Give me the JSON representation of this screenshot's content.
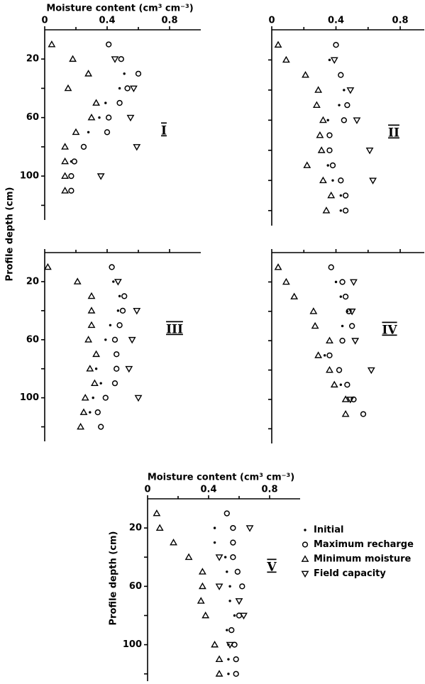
{
  "chart_data": [
    {
      "type": "scatter",
      "label": "I",
      "xlabel": "Moisture content (cm³ cm⁻³)",
      "ylabel": "Profile depth (cm)",
      "xlim": [
        0,
        1
      ],
      "ylim": [
        0,
        130
      ],
      "xticks": [
        0,
        0.4,
        0.8
      ],
      "xminor": [
        0.2,
        0.6
      ],
      "xtick_labels": true,
      "yticks": [
        20,
        60,
        100
      ],
      "yminor": [
        40,
        80,
        120
      ],
      "ytick_labels": true,
      "invert_y": true,
      "depth": [
        10,
        20,
        30,
        40,
        50,
        60,
        70,
        80,
        90,
        100,
        110
      ],
      "series": [
        {
          "marker": "dot",
          "x": [
            null,
            null,
            0.51,
            0.48,
            0.39,
            0.35,
            0.28,
            null,
            0.17,
            null,
            null
          ]
        },
        {
          "marker": "circle",
          "x": [
            0.41,
            0.49,
            0.6,
            0.53,
            0.48,
            0.41,
            0.4,
            0.25,
            0.19,
            0.17,
            0.17
          ]
        },
        {
          "marker": "triangle",
          "x": [
            0.045,
            0.18,
            0.28,
            0.15,
            0.33,
            0.3,
            0.2,
            0.13,
            0.13,
            0.13,
            0.13
          ]
        },
        {
          "marker": "triangle-down",
          "x": [
            null,
            0.45,
            null,
            0.57,
            null,
            0.55,
            null,
            0.59,
            null,
            0.36,
            null
          ]
        }
      ]
    },
    {
      "type": "scatter",
      "label": "II",
      "xlim": [
        0,
        0.95
      ],
      "ylim": [
        0,
        130
      ],
      "xticks": [
        0,
        0.4,
        0.8
      ],
      "xminor": [
        0.2,
        0.6
      ],
      "xtick_labels": true,
      "yticks": [
        20,
        60,
        100
      ],
      "yminor": [
        40,
        80,
        120
      ],
      "ytick_labels": false,
      "invert_y": true,
      "depth": [
        10,
        20,
        30,
        40,
        50,
        60,
        70,
        80,
        90,
        100,
        110,
        120
      ],
      "series": [
        {
          "marker": "dot",
          "x": [
            null,
            0.36,
            null,
            0.45,
            0.42,
            0.35,
            null,
            null,
            0.35,
            0.38,
            0.43,
            0.43
          ]
        },
        {
          "marker": "circle",
          "x": [
            0.4,
            null,
            0.43,
            null,
            0.47,
            0.45,
            0.36,
            0.36,
            0.38,
            0.43,
            0.46,
            0.46
          ]
        },
        {
          "marker": "triangle",
          "x": [
            0.04,
            0.09,
            0.21,
            0.29,
            0.28,
            0.32,
            0.3,
            0.31,
            0.22,
            0.32,
            0.37,
            0.34
          ]
        },
        {
          "marker": "triangle-down",
          "x": [
            null,
            0.39,
            null,
            0.49,
            null,
            0.53,
            null,
            0.61,
            null,
            0.63,
            null,
            null
          ]
        }
      ]
    },
    {
      "type": "scatter",
      "label": "III",
      "xlim": [
        0,
        1
      ],
      "ylim": [
        0,
        130
      ],
      "xticks": [
        0,
        0.4,
        0.8
      ],
      "xminor": [
        0.2,
        0.6
      ],
      "xtick_labels": false,
      "yticks": [
        20,
        60,
        100
      ],
      "yminor": [
        40,
        80,
        120
      ],
      "ytick_labels": true,
      "invert_y": true,
      "depth": [
        10,
        20,
        30,
        40,
        50,
        60,
        70,
        80,
        90,
        100,
        110,
        120
      ],
      "series": [
        {
          "marker": "dot",
          "x": [
            null,
            0.44,
            0.48,
            0.47,
            0.42,
            0.39,
            null,
            0.33,
            0.36,
            0.31,
            0.29,
            null
          ]
        },
        {
          "marker": "circle",
          "x": [
            0.43,
            null,
            0.51,
            0.5,
            0.48,
            0.45,
            0.46,
            0.46,
            0.45,
            0.39,
            0.34,
            0.36
          ]
        },
        {
          "marker": "triangle",
          "x": [
            0.02,
            0.21,
            0.3,
            0.3,
            0.3,
            0.28,
            0.33,
            0.29,
            0.32,
            0.26,
            0.25,
            0.23
          ]
        },
        {
          "marker": "triangle-down",
          "x": [
            null,
            0.47,
            null,
            0.59,
            null,
            0.56,
            null,
            0.54,
            null,
            0.6,
            null,
            null
          ]
        }
      ]
    },
    {
      "type": "scatter",
      "label": "IV",
      "xlim": [
        0,
        0.95
      ],
      "ylim": [
        0,
        130
      ],
      "xticks": [
        0,
        0.4,
        0.8
      ],
      "xminor": [
        0.2,
        0.6
      ],
      "xtick_labels": false,
      "yticks": [
        20,
        60,
        100
      ],
      "yminor": [
        40,
        80,
        120
      ],
      "ytick_labels": false,
      "invert_y": true,
      "depth": [
        10,
        20,
        30,
        40,
        50,
        60,
        70,
        80,
        90,
        100,
        110
      ],
      "series": [
        {
          "marker": "dot",
          "x": [
            null,
            0.4,
            0.43,
            0.47,
            0.44,
            null,
            0.33,
            null,
            0.43,
            null,
            null
          ]
        },
        {
          "marker": "circle",
          "x": [
            0.37,
            0.44,
            0.46,
            0.48,
            0.5,
            0.44,
            0.36,
            0.42,
            0.47,
            0.51,
            0.57
          ]
        },
        {
          "marker": "triangle",
          "x": [
            0.04,
            0.09,
            0.14,
            0.26,
            0.27,
            0.36,
            0.29,
            0.36,
            0.39,
            0.46,
            0.46
          ]
        },
        {
          "marker": "triangle-down",
          "x": [
            null,
            0.51,
            null,
            0.5,
            null,
            0.52,
            null,
            0.62,
            null,
            0.49,
            null
          ]
        }
      ]
    },
    {
      "type": "scatter",
      "label": "V",
      "xlabel": "Moisture content (cm³ cm⁻³)",
      "ylabel": "Profile depth (cm)",
      "xlim": [
        0,
        1
      ],
      "ylim": [
        0,
        125
      ],
      "xticks": [
        0,
        0.4,
        0.8
      ],
      "xminor": [
        0.2,
        0.6
      ],
      "xtick_labels": true,
      "yticks": [
        20,
        60,
        100
      ],
      "yminor": [
        40,
        80,
        120
      ],
      "ytick_labels": true,
      "invert_y": true,
      "legend": "right",
      "depth": [
        10,
        20,
        30,
        40,
        50,
        60,
        70,
        80,
        90,
        100,
        110,
        120
      ],
      "series": [
        {
          "name": "Initial",
          "marker": "dot",
          "x": [
            null,
            0.44,
            0.44,
            0.51,
            0.52,
            0.54,
            0.54,
            0.57,
            0.52,
            0.53,
            0.53,
            0.53
          ]
        },
        {
          "name": "Maximum recharge",
          "marker": "circle",
          "x": [
            0.52,
            0.56,
            0.56,
            0.56,
            0.59,
            0.62,
            null,
            0.6,
            0.55,
            0.57,
            0.58,
            0.58
          ]
        },
        {
          "name": "Minimum moisture",
          "marker": "triangle",
          "x": [
            0.06,
            0.08,
            0.17,
            0.27,
            0.36,
            0.36,
            0.35,
            0.38,
            null,
            0.44,
            0.47,
            0.47
          ]
        },
        {
          "name": "Field capacity",
          "marker": "triangle-down",
          "x": [
            null,
            0.67,
            null,
            0.47,
            null,
            0.47,
            0.6,
            0.63,
            null,
            0.54,
            null,
            null
          ]
        }
      ]
    }
  ]
}
